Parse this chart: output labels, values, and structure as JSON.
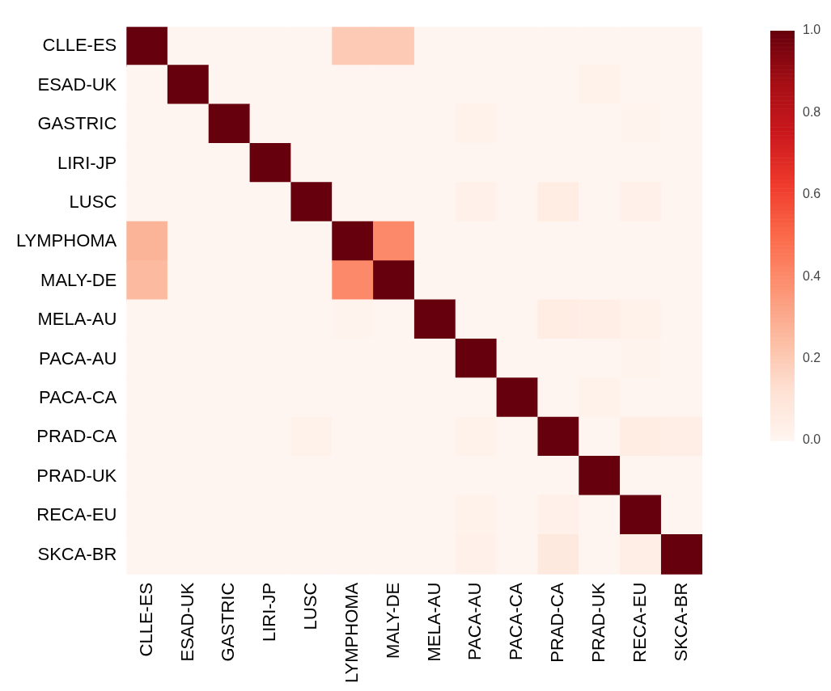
{
  "chart_data": {
    "type": "heatmap",
    "categories": [
      "CLLE-ES",
      "ESAD-UK",
      "GASTRIC",
      "LIRI-JP",
      "LUSC",
      "LYMPHOMA",
      "MALY-DE",
      "MELA-AU",
      "PACA-AU",
      "PACA-CA",
      "PRAD-CA",
      "PRAD-UK",
      "RECA-EU",
      "SKCA-BR"
    ],
    "y_categories": [
      "CLLE-ES",
      "ESAD-UK",
      "GASTRIC",
      "LIRI-JP",
      "LUSC",
      "LYMPHOMA",
      "MALY-DE",
      "MELA-AU",
      "PACA-AU",
      "PACA-CA",
      "PRAD-CA",
      "PRAD-UK",
      "RECA-EU",
      "SKCA-BR"
    ],
    "cells": [
      [
        1,
        0,
        0,
        0,
        0,
        0.2,
        0.2,
        0,
        0,
        0,
        0,
        0,
        0,
        0
      ],
      [
        0,
        1,
        0,
        0,
        0,
        0,
        0,
        0,
        0,
        0,
        0,
        0.02,
        0,
        0
      ],
      [
        0,
        0,
        1,
        0,
        0,
        0,
        0,
        0,
        0.02,
        0,
        0,
        0,
        0.01,
        0
      ],
      [
        0,
        0,
        0,
        1,
        0,
        0,
        0,
        0,
        0,
        0,
        0,
        0,
        0,
        0
      ],
      [
        0,
        0,
        0,
        0,
        1,
        0,
        0,
        0,
        0.03,
        0,
        0.05,
        0,
        0.03,
        0
      ],
      [
        0.27,
        0,
        0,
        0,
        0,
        1,
        0.4,
        0,
        0,
        0,
        0,
        0,
        0,
        0
      ],
      [
        0.25,
        0,
        0,
        0,
        0,
        0.4,
        1,
        0,
        0,
        0,
        0,
        0,
        0,
        0
      ],
      [
        0,
        0,
        0,
        0,
        0,
        0.01,
        0,
        1,
        0,
        0,
        0.05,
        0.04,
        0.02,
        0
      ],
      [
        0,
        0,
        0,
        0,
        0,
        0,
        0,
        0,
        1,
        0,
        0,
        0,
        0.01,
        0
      ],
      [
        0,
        0,
        0,
        0,
        0,
        0,
        0,
        0,
        0,
        1,
        0,
        0.02,
        0,
        0
      ],
      [
        0,
        0,
        0,
        0,
        0.02,
        0,
        0,
        0,
        0.02,
        0,
        1,
        0,
        0.05,
        0.04
      ],
      [
        0,
        0,
        0,
        0,
        0,
        0,
        0,
        0,
        0,
        0,
        0,
        1,
        0,
        0
      ],
      [
        0,
        0,
        0,
        0,
        0,
        0,
        0,
        0,
        0.02,
        0,
        0.03,
        0,
        1,
        0
      ],
      [
        0,
        0,
        0,
        0,
        0,
        0,
        0,
        0,
        0.03,
        0,
        0.07,
        0,
        0.04,
        1
      ]
    ],
    "clim": [
      0,
      1
    ],
    "cticks": [
      {
        "value": 0,
        "label": "0.0"
      },
      0.2,
      0.4,
      0.6,
      0.8,
      {
        "value": 1,
        "label": "1.0"
      }
    ]
  }
}
